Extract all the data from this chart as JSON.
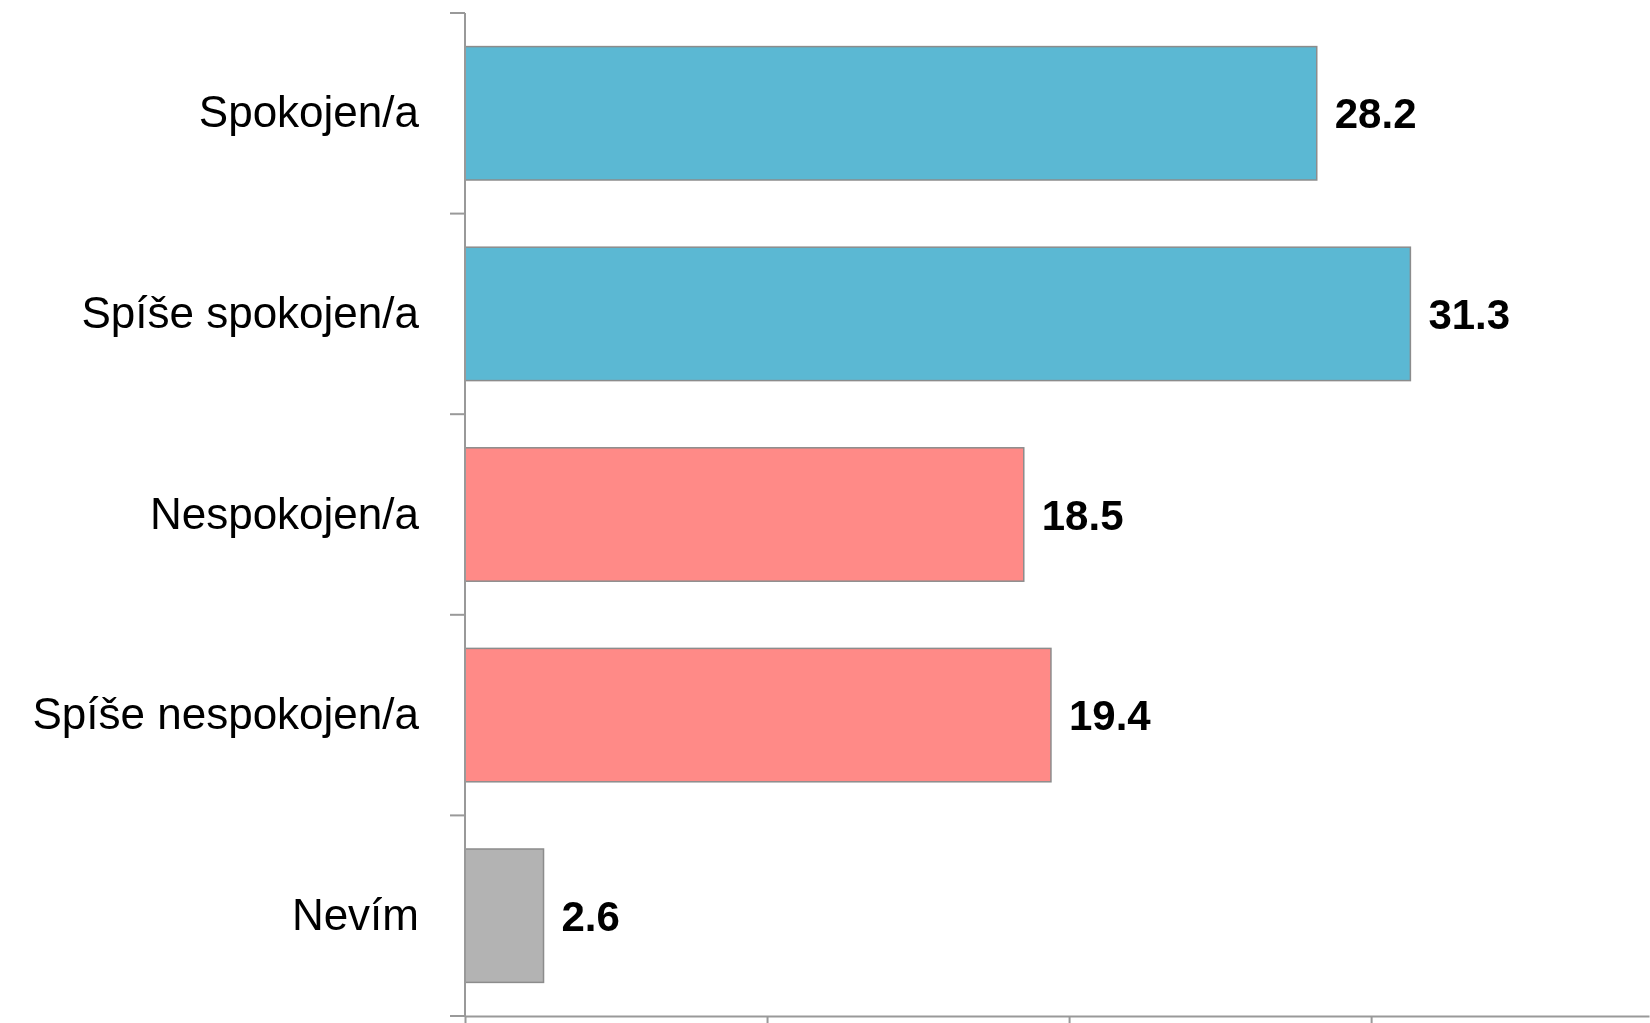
{
  "chart_data": {
    "type": "bar",
    "orientation": "horizontal",
    "categories": [
      "Spokojen/a",
      "Spíše spokojen/a",
      "Nespokojen/a",
      "Spíše nespokojen/a",
      "Nevím"
    ],
    "values": [
      28.2,
      31.3,
      18.5,
      19.4,
      2.6
    ],
    "colors": [
      "#5bb8d3",
      "#5bb8d3",
      "#ff8a87",
      "#ff8a87",
      "#b3b3b3"
    ],
    "xlim": [
      0,
      39.2
    ],
    "xticks": [
      {
        "value": 0,
        "label": null
      },
      {
        "value": 10,
        "label": null
      },
      {
        "value": 20,
        "label": null
      },
      {
        "value": 30,
        "label": null
      }
    ],
    "data_labels": true,
    "tick_labels": "y"
  }
}
